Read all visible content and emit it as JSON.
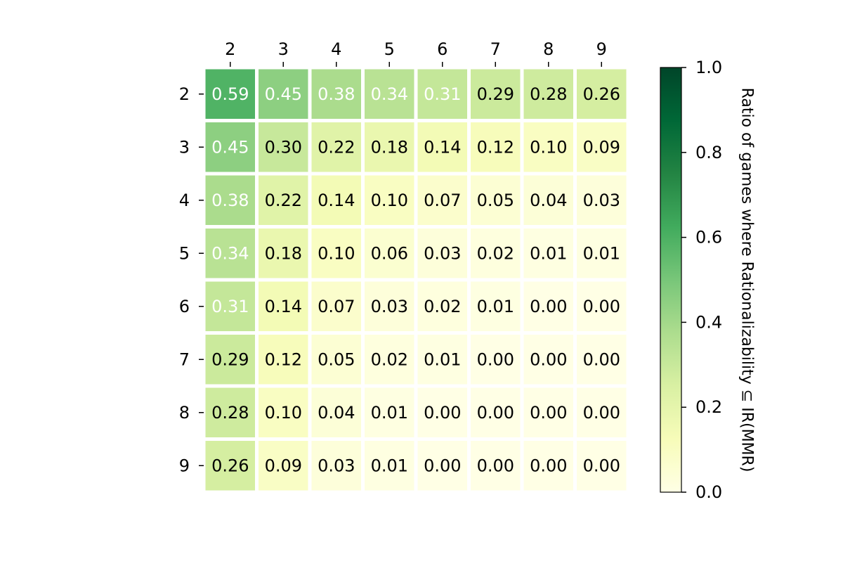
{
  "chart_data": {
    "type": "heatmap",
    "title": "",
    "xlabel": "",
    "ylabel": "",
    "x_categories": [
      "2",
      "3",
      "4",
      "5",
      "6",
      "7",
      "8",
      "9"
    ],
    "y_categories": [
      "2",
      "3",
      "4",
      "5",
      "6",
      "7",
      "8",
      "9"
    ],
    "x_axis_position": "top",
    "values": [
      [
        0.59,
        0.45,
        0.38,
        0.34,
        0.31,
        0.29,
        0.28,
        0.26
      ],
      [
        0.45,
        0.3,
        0.22,
        0.18,
        0.14,
        0.12,
        0.1,
        0.09
      ],
      [
        0.38,
        0.22,
        0.14,
        0.1,
        0.07,
        0.05,
        0.04,
        0.03
      ],
      [
        0.34,
        0.18,
        0.1,
        0.06,
        0.03,
        0.02,
        0.01,
        0.01
      ],
      [
        0.31,
        0.14,
        0.07,
        0.03,
        0.02,
        0.01,
        0.0,
        0.0
      ],
      [
        0.29,
        0.12,
        0.05,
        0.02,
        0.01,
        0.0,
        0.0,
        0.0
      ],
      [
        0.28,
        0.1,
        0.04,
        0.01,
        0.0,
        0.0,
        0.0,
        0.0
      ],
      [
        0.26,
        0.09,
        0.03,
        0.01,
        0.0,
        0.0,
        0.0,
        0.0
      ]
    ],
    "colormap": "YlGn",
    "color_range": [
      0.0,
      1.0
    ],
    "colorbar": {
      "label": "Ratio of games where Rationalizability ⊆ IR(MMR)",
      "ticks": [
        0.0,
        0.2,
        0.4,
        0.6,
        0.8,
        1.0
      ],
      "tick_labels": [
        "0.0",
        "0.2",
        "0.4",
        "0.6",
        "0.8",
        "1.0"
      ],
      "placement": "right"
    },
    "grid": false
  }
}
